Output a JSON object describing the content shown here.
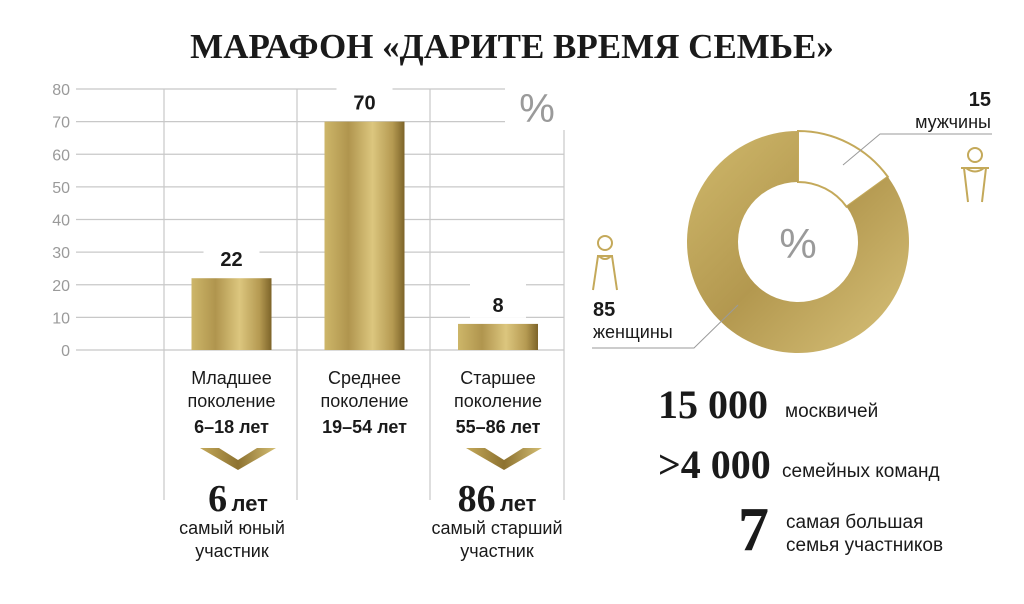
{
  "title": "МАРАФОН «ДАРИТЕ ВРЕМЯ СЕМЬЕ»",
  "colors": {
    "gold_light": "#d8c27a",
    "gold": "#c6ac5e",
    "gold_dark": "#8a6f2e",
    "grid": "#c8c8c8",
    "axis_text": "#9a9a9a",
    "text": "#1a1a1a"
  },
  "chart_data": [
    {
      "type": "bar",
      "unit_label": "%",
      "ylim": [
        0,
        80
      ],
      "yticks": [
        0,
        10,
        20,
        30,
        40,
        50,
        60,
        70,
        80
      ],
      "grid": true,
      "categories": [
        {
          "name_lines": [
            "Младшее",
            "поколение"
          ],
          "range": "6–18 лет"
        },
        {
          "name_lines": [
            "Среднее",
            "поколение"
          ],
          "range": "19–54 лет"
        },
        {
          "name_lines": [
            "Старшее",
            "поколение"
          ],
          "range": "55–86 лет"
        }
      ],
      "values": [
        22,
        70,
        8
      ],
      "value_labels": [
        "22",
        "70",
        "8"
      ]
    },
    {
      "type": "pie",
      "donut": true,
      "center_label": "%",
      "slices": [
        {
          "label": "мужчины",
          "value": 15,
          "value_label": "15",
          "icon": "man-icon"
        },
        {
          "label": "женщины",
          "value": 85,
          "value_label": "85",
          "icon": "woman-icon"
        }
      ]
    }
  ],
  "extremes": {
    "youngest": {
      "number": "6",
      "unit": "лет",
      "lines": [
        "самый юный",
        "участник"
      ]
    },
    "oldest": {
      "number": "86",
      "unit": "лет",
      "lines": [
        "самый старший",
        "участник"
      ]
    }
  },
  "stats": [
    {
      "number": "15 000",
      "text": "москвичей"
    },
    {
      "number": ">4 000",
      "text": "семейных команд"
    },
    {
      "number": "7",
      "lines": [
        "самая большая",
        "семья участников"
      ]
    }
  ]
}
